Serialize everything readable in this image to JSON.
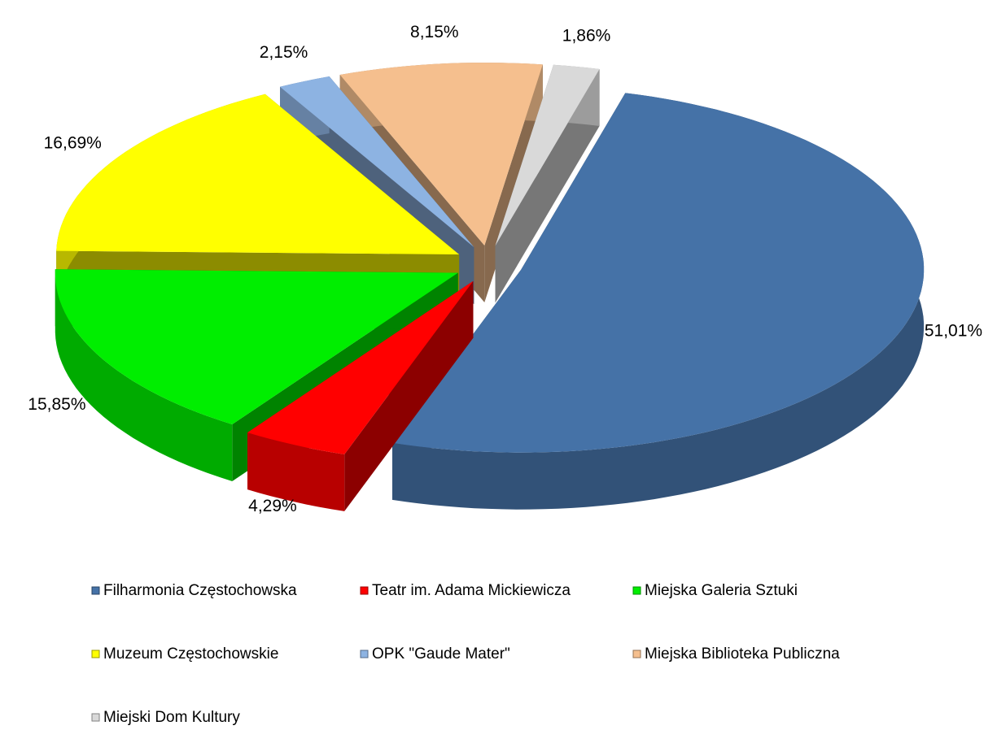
{
  "chart_data": {
    "type": "pie",
    "categories": [
      "Filharmonia Częstochowska",
      "Teatr im. Adama Mickiewicza",
      "Miejska Galeria Sztuki",
      "Muzeum Częstochowskie",
      "OPK \"Gaude Mater\"",
      "Miejska Biblioteka Publiczna",
      "Miejski Dom Kultury"
    ],
    "values": [
      51.01,
      4.29,
      15.85,
      16.69,
      2.15,
      8.15,
      1.86
    ],
    "value_labels": [
      "51,01%",
      "4,29%",
      "15,85%",
      "16,69%",
      "2,15%",
      "8,15%",
      "1,86%"
    ],
    "colors": [
      "#4572a7",
      "#ff0000",
      "#00ee00",
      "#ffff00",
      "#8db3e2",
      "#f5bf8e",
      "#d9d9d9"
    ],
    "legend": "bottom"
  }
}
